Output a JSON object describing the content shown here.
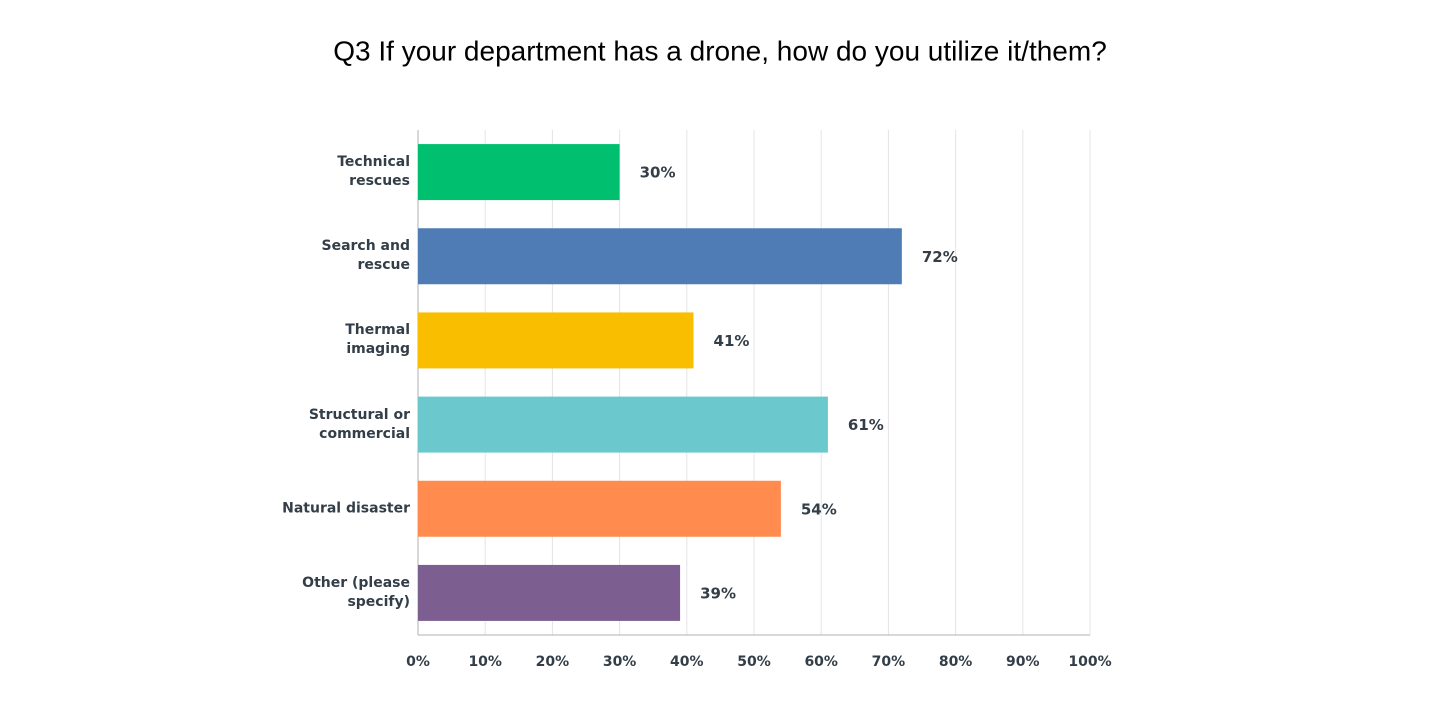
{
  "chart_data": {
    "type": "bar",
    "orientation": "horizontal",
    "title": "Q3 If your department has a drone, how do you utilize it/them?",
    "categories": [
      "Technical rescues",
      "Search and rescue",
      "Thermal imaging",
      "Structural or commercial",
      "Natural disaster",
      "Other (please specify)"
    ],
    "values": [
      30,
      72,
      41,
      61,
      54,
      39
    ],
    "value_labels": [
      "30%",
      "72%",
      "41%",
      "61%",
      "54%",
      "39%"
    ],
    "colors": [
      "#00bf6f",
      "#507cb6",
      "#f9be00",
      "#6bc8cd",
      "#ff8b4f",
      "#7d5e90"
    ],
    "xlim": [
      0,
      100
    ],
    "xticks": [
      {
        "value": 0,
        "label": "0%"
      },
      {
        "value": 10,
        "label": "10%"
      },
      {
        "value": 20,
        "label": "20%"
      },
      {
        "value": 30,
        "label": "30%"
      },
      {
        "value": 40,
        "label": "40%"
      },
      {
        "value": 50,
        "label": "50%"
      },
      {
        "value": 60,
        "label": "60%"
      },
      {
        "value": 70,
        "label": "70%"
      },
      {
        "value": 80,
        "label": "80%"
      },
      {
        "value": 90,
        "label": "90%"
      },
      {
        "value": 100,
        "label": "100%"
      }
    ],
    "grid": true
  }
}
